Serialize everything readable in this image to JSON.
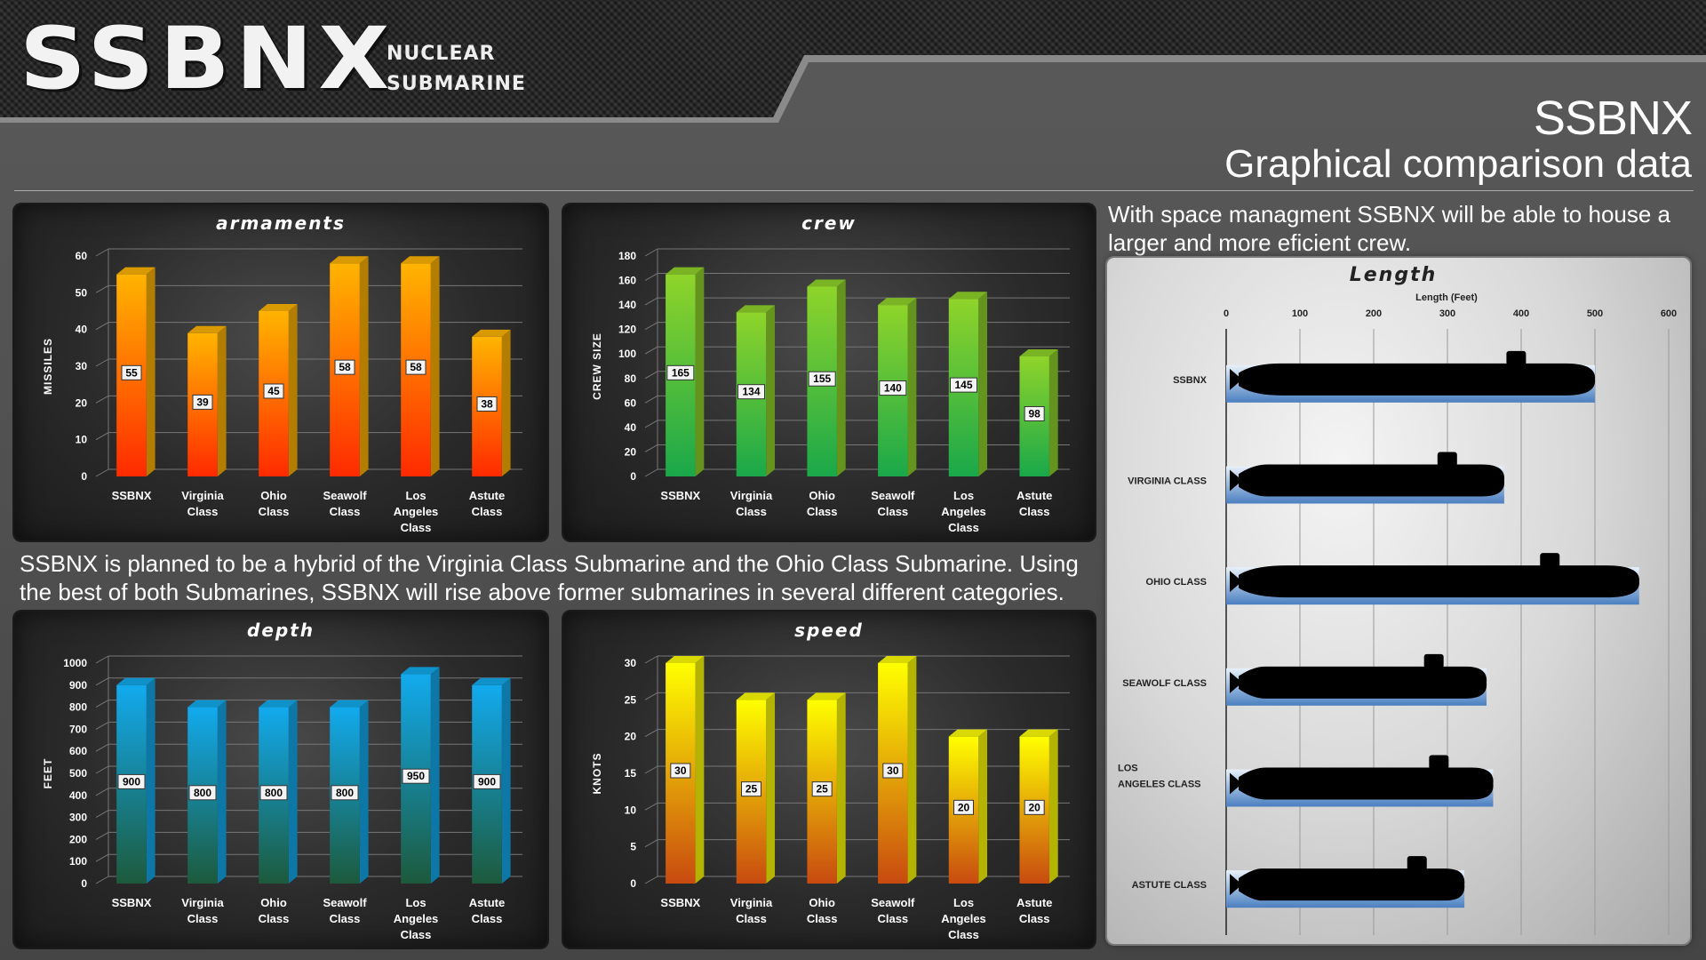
{
  "header": {
    "logo": "SSBNX",
    "logo_sub1": "NUCLEAR",
    "logo_sub2": "SUBMARINE",
    "title": "SSBNX",
    "subtitle": "Graphical comparison data"
  },
  "texts": {
    "crew_note": "With space managment SSBNX will be able to house a larger and more eficient crew.",
    "hybrid_note": "SSBNX is planned to be a hybrid of the Virginia Class Submarine and the Ohio Class Submarine. Using the best of both Submarines, SSBNX will rise above former submarines in several different categories."
  },
  "colors": {
    "armaments": [
      "#ff2a00",
      "#ffb400"
    ],
    "crew": [
      "#1aa84a",
      "#8fd42a"
    ],
    "depth": [
      "#1d5a3c",
      "#12aaee"
    ],
    "speed": [
      "#c84a10",
      "#ffff00"
    ],
    "length_base": "#4a7fc0"
  },
  "chart_data": [
    {
      "id": "armaments",
      "type": "bar",
      "title": "armaments",
      "ylabel": "MISSILES",
      "xlabel": "",
      "categories": [
        "SSBNX",
        "Virginia Class",
        "Ohio Class",
        "Seawolf Class",
        "Los Angeles Class",
        "Astute Class"
      ],
      "values": [
        55,
        39,
        45,
        58,
        58,
        38
      ],
      "ylim": [
        0,
        60
      ],
      "yticks": [
        0,
        10,
        20,
        30,
        40,
        50,
        60
      ],
      "grid": true
    },
    {
      "id": "crew",
      "type": "bar",
      "title": "crew",
      "ylabel": "CREW SIZE",
      "xlabel": "",
      "categories": [
        "SSBNX",
        "Virginia Class",
        "Ohio Class",
        "Seawolf Class",
        "Los Angeles Class",
        "Astute Class"
      ],
      "values": [
        165,
        134,
        155,
        140,
        145,
        98
      ],
      "ylim": [
        0,
        180
      ],
      "yticks": [
        0,
        20,
        40,
        60,
        80,
        100,
        120,
        140,
        160,
        180
      ],
      "grid": true
    },
    {
      "id": "depth",
      "type": "bar",
      "title": "depth",
      "ylabel": "FEET",
      "xlabel": "",
      "categories": [
        "SSBNX",
        "Virginia Class",
        "Ohio Class",
        "Seawolf Class",
        "Los Angeles Class",
        "Astute Class"
      ],
      "values": [
        900,
        800,
        800,
        800,
        950,
        900
      ],
      "ylim": [
        0,
        1000
      ],
      "yticks": [
        0,
        100,
        200,
        300,
        400,
        500,
        600,
        700,
        800,
        900,
        1000
      ],
      "grid": true
    },
    {
      "id": "speed",
      "type": "bar",
      "title": "speed",
      "ylabel": "KNOTS",
      "xlabel": "",
      "categories": [
        "SSBNX",
        "Virginia Class",
        "Ohio Class",
        "Seawolf Class",
        "Los Angeles Class",
        "Astute Class"
      ],
      "values": [
        30,
        25,
        25,
        30,
        20,
        20
      ],
      "ylim": [
        0,
        30
      ],
      "yticks": [
        0,
        5,
        10,
        15,
        20,
        25,
        30
      ],
      "grid": true
    },
    {
      "id": "length",
      "type": "bar",
      "orientation": "horizontal",
      "title": "Length",
      "xlabel": "Length (Feet)",
      "ylabel": "",
      "categories": [
        "SSBNX",
        "VIRGINIA CLASS",
        "OHIO CLASS",
        "SEAWOLF CLASS",
        "LOS ANGELES CLASS",
        "ASTUTE CLASS"
      ],
      "values": [
        500,
        377,
        560,
        353,
        362,
        323
      ],
      "xlim": [
        0,
        600
      ],
      "xticks": [
        0,
        100,
        200,
        300,
        400,
        500,
        600
      ],
      "grid": true
    }
  ]
}
